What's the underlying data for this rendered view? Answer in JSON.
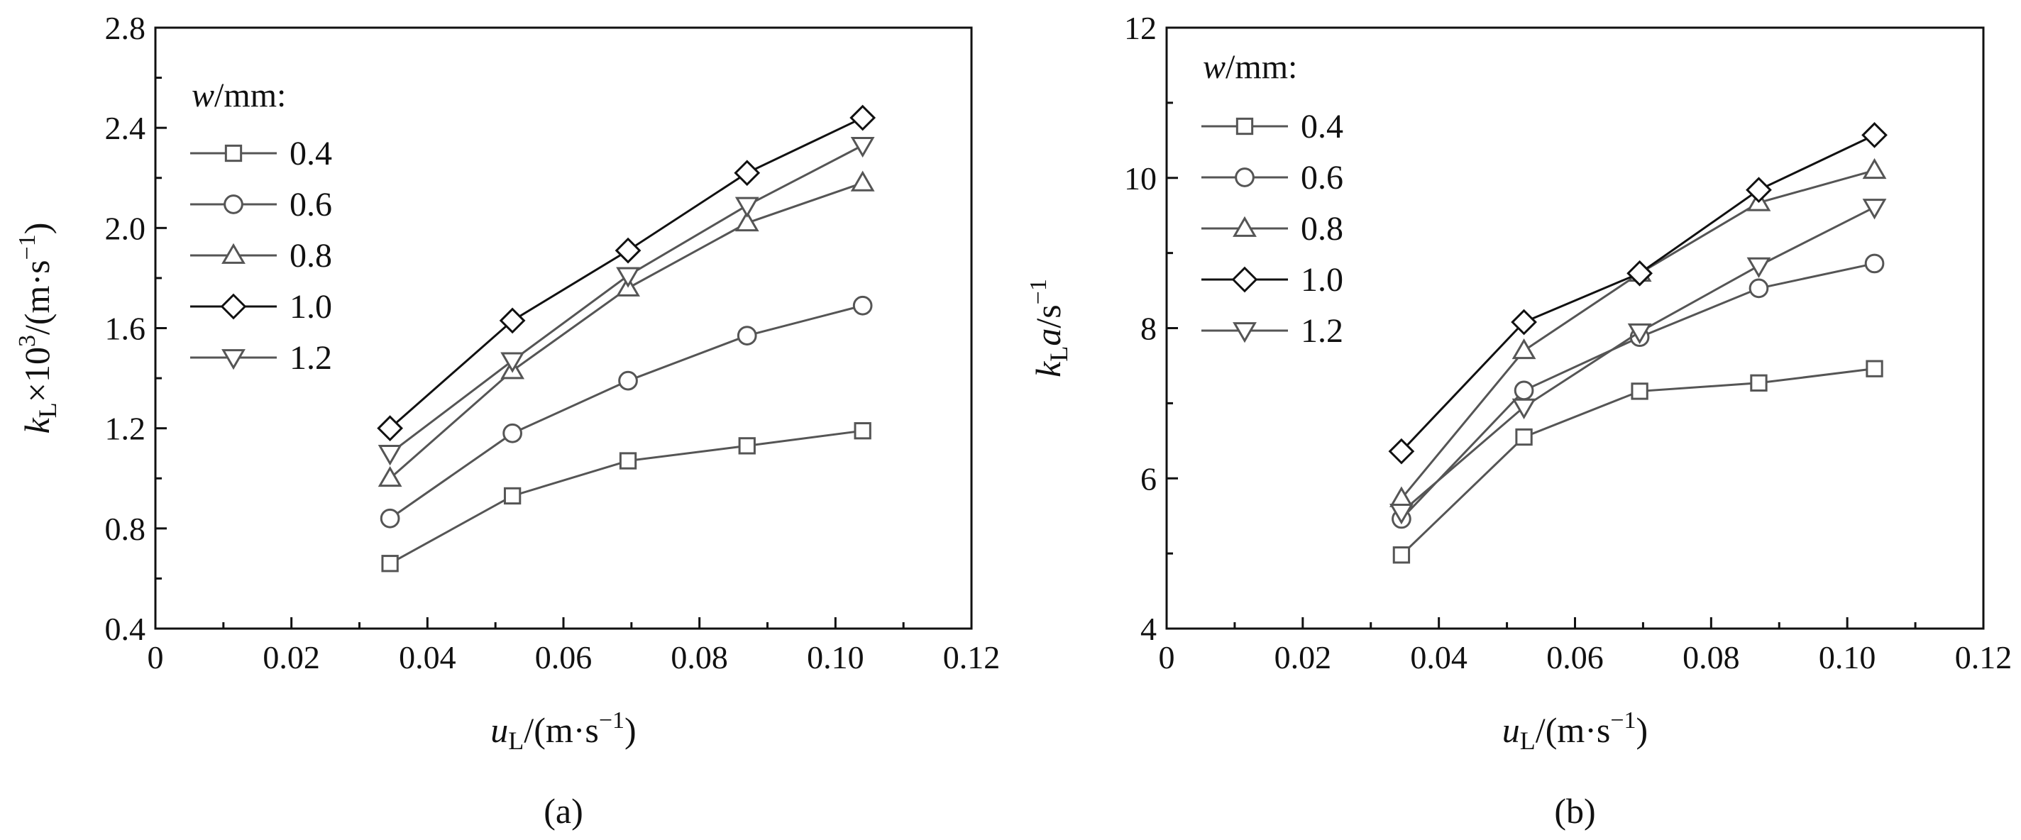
{
  "charts": [
    {
      "panel_label": "(a)",
      "ylabel_parts": {
        "k": "k",
        "sub": "L",
        "times": "×10",
        "sup": "3",
        "unit": "/(m·s",
        "unit_sup": "−1",
        "close": ")"
      },
      "xlabel_parts": {
        "u": "u",
        "sub": "L",
        "unit": "/(m·s",
        "unit_sup": "−1",
        "close": ")"
      },
      "xticks": [
        "0",
        "0.02",
        "0.04",
        "0.06",
        "0.08",
        "0.10",
        "0.12"
      ],
      "yticks": [
        "0.4",
        "0.8",
        "1.2",
        "1.6",
        "2.0",
        "2.4",
        "2.8"
      ],
      "legend": {
        "title_w": "w",
        "title_rest": "/mm:",
        "entries": [
          "0.4",
          "0.6",
          "0.8",
          "1.0",
          "1.2"
        ]
      }
    },
    {
      "panel_label": "(b)",
      "ylabel_parts": {
        "k": "k",
        "sub": "L",
        "a": "a",
        "unit": "/s",
        "unit_sup": "−1"
      },
      "xlabel_parts": {
        "u": "u",
        "sub": "L",
        "unit": "/(m·s",
        "unit_sup": "−1",
        "close": ")"
      },
      "xticks": [
        "0",
        "0.02",
        "0.04",
        "0.06",
        "0.08",
        "0.10",
        "0.12"
      ],
      "yticks": [
        "4",
        "6",
        "8",
        "10",
        "12"
      ],
      "legend": {
        "title_w": "w",
        "title_rest": "/mm:",
        "entries": [
          "0.4",
          "0.6",
          "0.8",
          "1.0",
          "1.2"
        ]
      }
    }
  ],
  "chart_data": [
    {
      "type": "line",
      "xlim": [
        0,
        0.12
      ],
      "ylim": [
        0.4,
        2.8
      ],
      "legend_position": "top-left",
      "grid": false,
      "x": [
        0.0345,
        0.0525,
        0.0695,
        0.087,
        0.104
      ],
      "series": [
        {
          "name": "0.4",
          "marker": "square",
          "color": "#555555",
          "values": [
            0.66,
            0.93,
            1.07,
            1.13,
            1.19
          ]
        },
        {
          "name": "0.6",
          "marker": "circle",
          "color": "#555555",
          "values": [
            0.84,
            1.18,
            1.39,
            1.57,
            1.69
          ]
        },
        {
          "name": "0.8",
          "marker": "triangle-up",
          "color": "#555555",
          "values": [
            1.0,
            1.43,
            1.76,
            2.02,
            2.18
          ]
        },
        {
          "name": "1.0",
          "marker": "diamond",
          "color": "#111111",
          "values": [
            1.2,
            1.63,
            1.91,
            2.22,
            2.44
          ]
        },
        {
          "name": "1.2",
          "marker": "triangle-down",
          "color": "#555555",
          "values": [
            1.1,
            1.47,
            1.81,
            2.09,
            2.33
          ]
        }
      ]
    },
    {
      "type": "line",
      "xlim": [
        0,
        0.12
      ],
      "ylim": [
        4,
        12
      ],
      "legend_position": "top-left",
      "grid": false,
      "x": [
        0.0345,
        0.0525,
        0.0695,
        0.087,
        0.104
      ],
      "series": [
        {
          "name": "0.4",
          "marker": "square",
          "color": "#555555",
          "values": [
            4.98,
            6.55,
            7.16,
            7.27,
            7.46
          ]
        },
        {
          "name": "0.6",
          "marker": "circle",
          "color": "#555555",
          "values": [
            5.46,
            7.17,
            7.88,
            8.53,
            8.86
          ]
        },
        {
          "name": "0.8",
          "marker": "triangle-up",
          "color": "#555555",
          "values": [
            5.73,
            7.7,
            8.73,
            9.67,
            10.1
          ]
        },
        {
          "name": "1.0",
          "marker": "diamond",
          "color": "#111111",
          "values": [
            6.36,
            8.08,
            8.73,
            9.84,
            10.57
          ]
        },
        {
          "name": "1.2",
          "marker": "triangle-down",
          "color": "#555555",
          "values": [
            5.55,
            6.95,
            7.95,
            8.83,
            9.61
          ]
        }
      ]
    }
  ]
}
